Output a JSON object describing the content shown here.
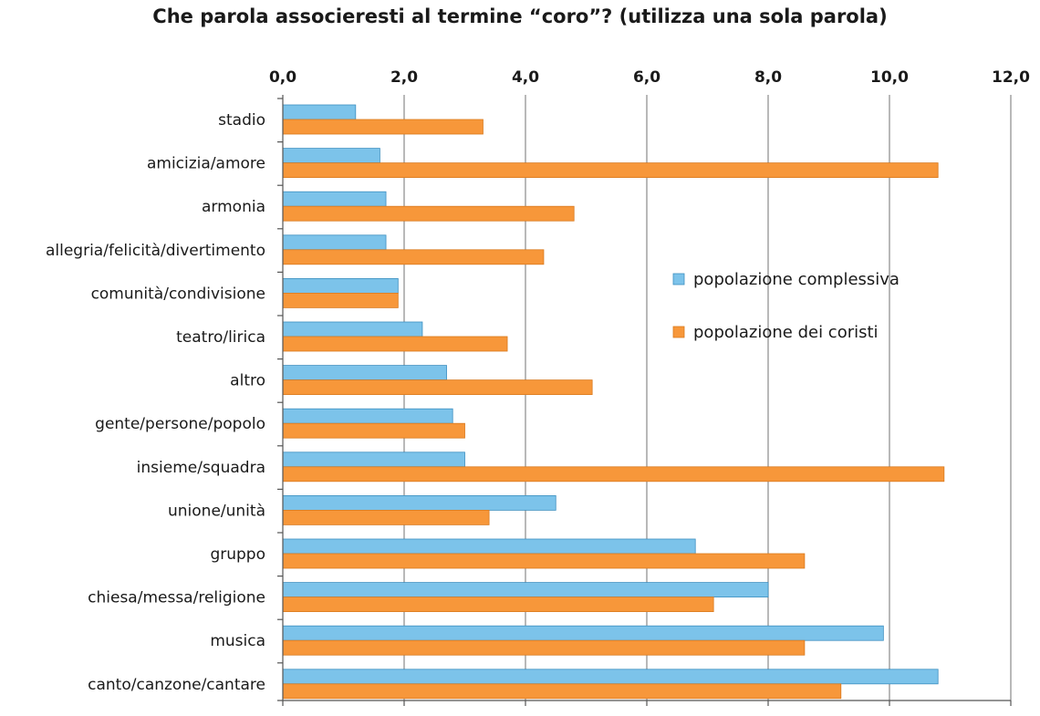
{
  "chart_data": {
    "type": "bar",
    "orientation": "horizontal",
    "title": "Che parola associeresti al termine “coro”? (utilizza una sola parola)",
    "xlabel": "",
    "ylabel": "",
    "xlim": [
      0,
      12
    ],
    "xticks": [
      "0,0",
      "2,0",
      "4,0",
      "6,0",
      "8,0",
      "10,0",
      "12,0"
    ],
    "x_axis_position": "top",
    "grid": "vertical",
    "legend_placement": "center-right",
    "categories": [
      "stadio",
      "amicizia/amore",
      "armonia",
      "allegria/felicità/divertimento",
      "comunità/condivisione",
      "teatro/lirica",
      "altro",
      "gente/persone/popolo",
      "insieme/squadra",
      "unione/unità",
      "gruppo",
      "chiesa/messa/religione",
      "musica",
      "canto/canzone/cantare"
    ],
    "series": [
      {
        "name": "popolazione complessiva",
        "color": "#7cc3ea",
        "values": [
          1.2,
          1.6,
          1.7,
          1.7,
          1.9,
          2.3,
          2.7,
          2.8,
          3.0,
          4.5,
          6.8,
          8.0,
          9.9,
          10.8
        ]
      },
      {
        "name": "popolazione dei coristi",
        "color": "#f7973a",
        "values": [
          3.3,
          10.8,
          4.8,
          4.3,
          1.9,
          3.7,
          5.1,
          3.0,
          10.9,
          3.4,
          8.6,
          7.1,
          8.6,
          9.2
        ]
      }
    ]
  }
}
